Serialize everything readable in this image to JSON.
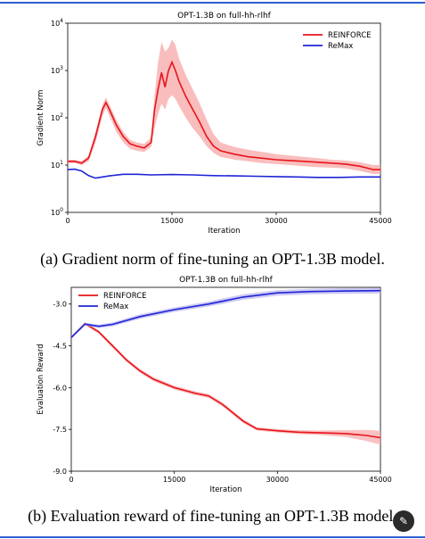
{
  "charts": [
    {
      "title": "OPT-1.3B on full-hh-rlhf",
      "caption": "(a) Gradient norm of fine-tuning an OPT-1.3B model.",
      "xlabel": "Iteration",
      "ylabel": "Gradient Norm",
      "x_ticks": [
        "0",
        "15000",
        "30000",
        "45000"
      ],
      "y_ticks": [
        {
          "base": "10",
          "exp": "0"
        },
        {
          "base": "10",
          "exp": "1"
        },
        {
          "base": "10",
          "exp": "2"
        },
        {
          "base": "10",
          "exp": "3"
        },
        {
          "base": "10",
          "exp": "4"
        }
      ],
      "legend": [
        "REINFORCE",
        "ReMax"
      ]
    },
    {
      "title": "OPT-1.3B on full-hh-rlhf",
      "caption": "(b) Evaluation reward of fine-tuning an OPT-1.3B model.",
      "xlabel": "Iteration",
      "ylabel": "Evaluation Reward",
      "x_ticks": [
        "0",
        "15000",
        "30000",
        "45000"
      ],
      "y_ticks": [
        "-3.0",
        "-4.5",
        "-6.0",
        "-7.5",
        "-9.0"
      ],
      "legend": [
        "REINFORCE",
        "ReMax"
      ]
    }
  ],
  "chart_data": [
    {
      "type": "line",
      "title": "OPT-1.3B on full-hh-rlhf",
      "xlabel": "Iteration",
      "ylabel": "Gradient Norm",
      "xlim": [
        0,
        45000
      ],
      "ylim": [
        1,
        10000
      ],
      "yscale": "log",
      "legend_position": "top-right",
      "series": [
        {
          "name": "REINFORCE",
          "color": "#e8141b",
          "band_color": "#f7a7a7",
          "x": [
            0,
            1000,
            2000,
            3000,
            4000,
            5000,
            5500,
            6000,
            7000,
            8000,
            9000,
            10000,
            11000,
            12000,
            12500,
            13000,
            13500,
            14000,
            14500,
            15000,
            15500,
            16000,
            17000,
            18000,
            19000,
            20000,
            21000,
            22000,
            24000,
            26000,
            28000,
            30000,
            32000,
            34000,
            36000,
            38000,
            40000,
            42000,
            44000,
            45000
          ],
          "y": [
            12,
            12,
            11,
            14,
            40,
            150,
            210,
            150,
            70,
            40,
            28,
            25,
            23,
            30,
            150,
            400,
            900,
            450,
            1000,
            1500,
            1000,
            600,
            280,
            150,
            80,
            40,
            25,
            20,
            17,
            15,
            14,
            13,
            12.5,
            12,
            11.5,
            11,
            10.5,
            9.5,
            8,
            8
          ],
          "band_low": [
            11,
            11,
            10,
            12,
            30,
            110,
            160,
            110,
            50,
            30,
            22,
            20,
            19,
            24,
            60,
            120,
            200,
            150,
            250,
            300,
            250,
            180,
            100,
            60,
            40,
            25,
            18,
            15,
            13,
            12,
            11,
            10.5,
            10,
            9.5,
            9,
            8.8,
            8.5,
            7.5,
            6.5,
            6.5
          ],
          "band_high": [
            13,
            13,
            12,
            16,
            50,
            190,
            270,
            190,
            90,
            50,
            34,
            30,
            28,
            38,
            300,
            1500,
            4000,
            2500,
            3000,
            4500,
            3500,
            1800,
            800,
            400,
            200,
            90,
            45,
            30,
            24,
            21,
            19,
            17,
            16,
            15,
            14,
            13,
            12.5,
            11.5,
            10,
            10
          ]
        },
        {
          "name": "ReMax",
          "color": "#1f25d6",
          "x": [
            0,
            1000,
            2000,
            3000,
            4000,
            6000,
            8000,
            10000,
            12000,
            15000,
            18000,
            21000,
            24000,
            27000,
            30000,
            33000,
            36000,
            39000,
            42000,
            45000
          ],
          "y": [
            8,
            8.2,
            7.5,
            6,
            5.3,
            5.9,
            6.4,
            6.4,
            6.2,
            6.3,
            6.2,
            6.0,
            5.9,
            5.8,
            5.7,
            5.6,
            5.5,
            5.5,
            5.6,
            5.6
          ]
        }
      ]
    },
    {
      "type": "line",
      "title": "OPT-1.3B on full-hh-rlhf",
      "xlabel": "Iteration",
      "ylabel": "Evaluation Reward",
      "xlim": [
        0,
        45000
      ],
      "ylim": [
        -9.0,
        -2.4
      ],
      "legend_position": "top-left",
      "series": [
        {
          "name": "REINFORCE",
          "color": "#e8141b",
          "band_color": "#f7a7a7",
          "x": [
            0,
            2000,
            4000,
            6000,
            8000,
            10000,
            12000,
            15000,
            18000,
            20000,
            22000,
            25000,
            27000,
            30000,
            33000,
            36000,
            40000,
            43000,
            45000
          ],
          "y": [
            -4.2,
            -3.7,
            -4.0,
            -4.5,
            -5.0,
            -5.4,
            -5.7,
            -6.0,
            -6.2,
            -6.3,
            -6.6,
            -7.2,
            -7.48,
            -7.55,
            -7.6,
            -7.62,
            -7.65,
            -7.72,
            -7.8
          ],
          "band_halfwidth": [
            0.05,
            0.05,
            0.06,
            0.07,
            0.07,
            0.07,
            0.07,
            0.07,
            0.07,
            0.07,
            0.07,
            0.07,
            0.06,
            0.06,
            0.07,
            0.08,
            0.12,
            0.2,
            0.25
          ]
        },
        {
          "name": "ReMax",
          "color": "#1f25d6",
          "band_color": "#b9b4f0",
          "x": [
            0,
            2000,
            4000,
            6000,
            10000,
            15000,
            20000,
            25000,
            30000,
            35000,
            40000,
            45000
          ],
          "y": [
            -4.2,
            -3.72,
            -3.8,
            -3.73,
            -3.45,
            -3.2,
            -3.0,
            -2.75,
            -2.6,
            -2.55,
            -2.53,
            -2.52
          ],
          "band_halfwidth": [
            0.05,
            0.05,
            0.06,
            0.07,
            0.08,
            0.08,
            0.09,
            0.1,
            0.1,
            0.1,
            0.1,
            0.1
          ]
        }
      ]
    }
  ]
}
